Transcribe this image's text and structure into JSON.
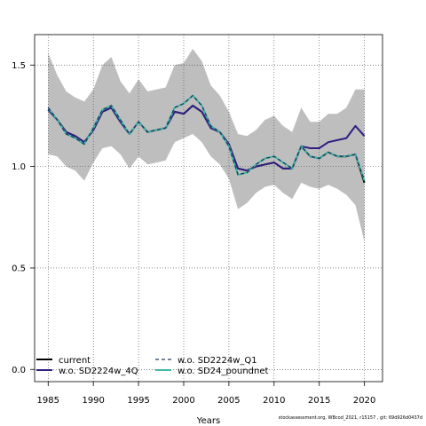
{
  "chart_data": {
    "type": "line",
    "title": "",
    "xlabel": "Years",
    "ylabel": "",
    "xlim": [
      1983.5,
      2022
    ],
    "ylim": [
      -0.06,
      1.65
    ],
    "xticks": [
      1985,
      1990,
      1995,
      2000,
      2005,
      2010,
      2015,
      2020
    ],
    "yticks": [
      0.0,
      0.5,
      1.0,
      1.5
    ],
    "ytick_labels": [
      "0.0",
      "0.5",
      "1.0",
      "1.5"
    ],
    "grid": true,
    "legend_position": "bottom-left",
    "x": [
      1985,
      1986,
      1987,
      1988,
      1989,
      1990,
      1991,
      1992,
      1993,
      1994,
      1995,
      1996,
      1997,
      1998,
      1999,
      2000,
      2001,
      2002,
      2003,
      2004,
      2005,
      2006,
      2007,
      2008,
      2009,
      2010,
      2011,
      2012,
      2013,
      2014,
      2015,
      2016,
      2017,
      2018,
      2019,
      2020
    ],
    "band": {
      "upper": [
        1.56,
        1.45,
        1.37,
        1.34,
        1.32,
        1.38,
        1.5,
        1.54,
        1.42,
        1.36,
        1.43,
        1.37,
        1.38,
        1.39,
        1.5,
        1.51,
        1.58,
        1.52,
        1.4,
        1.35,
        1.27,
        1.16,
        1.15,
        1.18,
        1.23,
        1.25,
        1.2,
        1.17,
        1.29,
        1.22,
        1.22,
        1.26,
        1.26,
        1.29,
        1.38,
        1.38
      ],
      "lower": [
        1.06,
        1.05,
        1.0,
        0.98,
        0.93,
        1.02,
        1.09,
        1.1,
        1.06,
        0.99,
        1.05,
        1.01,
        1.02,
        1.03,
        1.12,
        1.14,
        1.16,
        1.12,
        1.05,
        1.01,
        0.94,
        0.79,
        0.82,
        0.87,
        0.9,
        0.91,
        0.87,
        0.84,
        0.92,
        0.9,
        0.89,
        0.91,
        0.89,
        0.86,
        0.81,
        0.63
      ],
      "color": "#bebebe"
    },
    "series": [
      {
        "name": "current",
        "color": "#000000",
        "dash": "solid",
        "values": [
          1.28,
          1.23,
          1.17,
          1.15,
          1.12,
          1.18,
          1.27,
          1.29,
          1.22,
          1.16,
          1.22,
          1.17,
          1.18,
          1.19,
          1.27,
          1.26,
          1.3,
          1.27,
          1.19,
          1.17,
          1.11,
          0.99,
          0.98,
          1.0,
          1.01,
          1.02,
          0.99,
          0.99,
          1.1,
          1.05,
          1.04,
          1.07,
          1.05,
          1.05,
          1.06,
          0.92
        ]
      },
      {
        "name": "w.o. SD2224w_4Q",
        "color": "#2f1f82",
        "dash": "solid",
        "values": [
          1.28,
          1.23,
          1.17,
          1.15,
          1.12,
          1.18,
          1.27,
          1.29,
          1.22,
          1.16,
          1.22,
          1.17,
          1.18,
          1.19,
          1.27,
          1.26,
          1.3,
          1.27,
          1.19,
          1.17,
          1.11,
          0.99,
          0.98,
          1.0,
          1.01,
          1.02,
          0.99,
          0.99,
          1.1,
          1.09,
          1.09,
          1.12,
          1.13,
          1.14,
          1.2,
          1.15
        ]
      },
      {
        "name": "w.o. SD2224w_Q1",
        "color": "#23395b",
        "dash": "dashed",
        "values": [
          1.29,
          1.23,
          1.16,
          1.14,
          1.11,
          1.19,
          1.28,
          1.3,
          1.23,
          1.16,
          1.22,
          1.17,
          1.18,
          1.19,
          1.29,
          1.31,
          1.35,
          1.3,
          1.2,
          1.17,
          1.1,
          0.96,
          0.97,
          1.01,
          1.04,
          1.05,
          1.02,
          0.99,
          1.1,
          1.05,
          1.04,
          1.07,
          1.05,
          1.05,
          1.06,
          0.93
        ]
      },
      {
        "name": "w.o. SD24_poundnet",
        "color": "#3fb8a8",
        "dash": "solid",
        "values": [
          1.29,
          1.23,
          1.16,
          1.14,
          1.11,
          1.19,
          1.28,
          1.3,
          1.23,
          1.16,
          1.22,
          1.17,
          1.18,
          1.19,
          1.29,
          1.31,
          1.35,
          1.3,
          1.2,
          1.17,
          1.1,
          0.96,
          0.97,
          1.01,
          1.04,
          1.05,
          1.02,
          0.99,
          1.1,
          1.05,
          1.04,
          1.07,
          1.05,
          1.05,
          1.06,
          0.93
        ]
      }
    ]
  },
  "footer": {
    "text": "stockassessment.org, WBcod_2021, r15157 , git: 69d926d0437d"
  }
}
